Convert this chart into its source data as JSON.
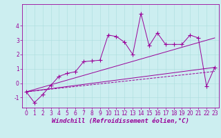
{
  "background_color": "#cceef0",
  "plot_bg_color": "#cceef0",
  "line_color": "#990099",
  "grid_color": "#aadddd",
  "xlabel": "Windchill (Refroidissement éolien,°C)",
  "xlabel_fontsize": 6.5,
  "tick_fontsize": 5.5,
  "ylim": [
    -1.7,
    5.5
  ],
  "xlim": [
    -0.5,
    23.5
  ],
  "yticks": [
    -1,
    0,
    1,
    2,
    3,
    4
  ],
  "xticks": [
    0,
    1,
    2,
    3,
    4,
    5,
    6,
    7,
    8,
    9,
    10,
    11,
    12,
    13,
    14,
    15,
    16,
    17,
    18,
    19,
    20,
    21,
    22,
    23
  ],
  "scatter_x": [
    0,
    1,
    2,
    3,
    4,
    5,
    6,
    7,
    8,
    9,
    10,
    11,
    12,
    13,
    14,
    15,
    16,
    17,
    18,
    19,
    20,
    21,
    22,
    23
  ],
  "scatter_y": [
    -0.6,
    -1.35,
    -0.8,
    -0.15,
    0.48,
    0.68,
    0.8,
    1.5,
    1.55,
    1.6,
    3.35,
    3.25,
    2.85,
    2.0,
    4.85,
    2.6,
    3.5,
    2.7,
    2.7,
    2.7,
    3.35,
    3.15,
    -0.2,
    1.1
  ],
  "line1_x": [
    0,
    23
  ],
  "line1_y": [
    -0.6,
    3.15
  ],
  "line2_x": [
    0,
    23
  ],
  "line2_y": [
    -0.6,
    1.1
  ],
  "line3_x": [
    0,
    23
  ],
  "line3_y": [
    -0.6,
    0.82
  ],
  "marker_size": 2.5,
  "line_width": 0.7,
  "title_fontsize": 6
}
